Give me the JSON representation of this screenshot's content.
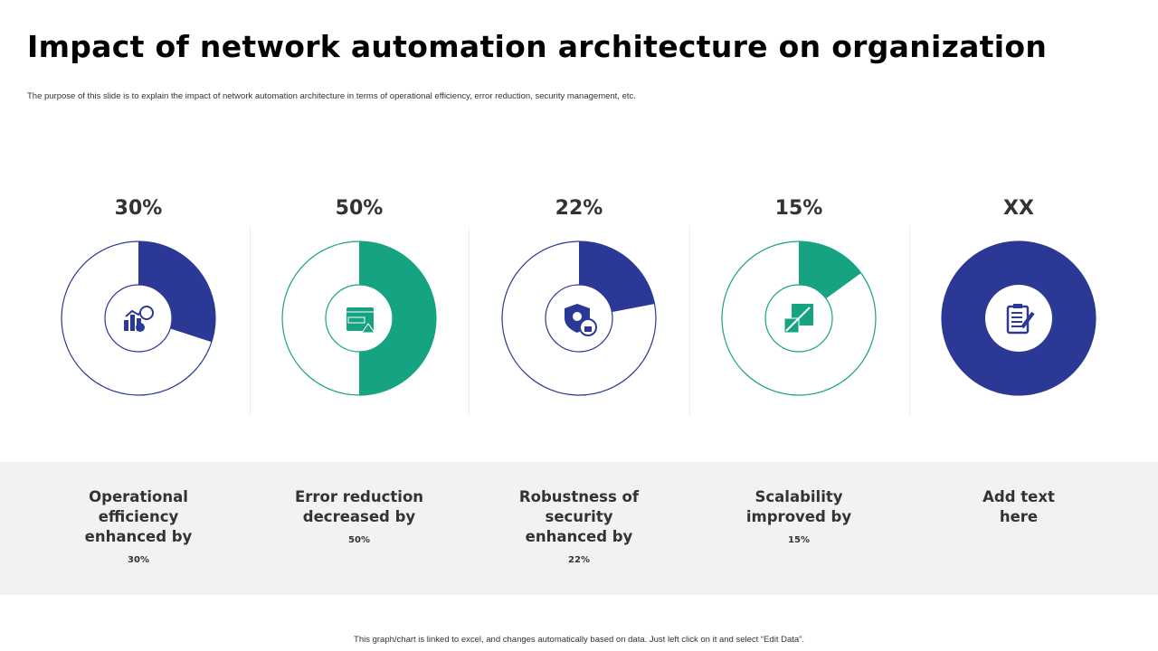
{
  "title": "Impact of network automation architecture on organization",
  "subtitle": "The purpose of this slide is to explain the impact of network automation architecture in terms of operational efficiency, error reduction, security management, etc.",
  "footer": "This graph/chart is linked to excel, and changes automatically based on data. Just left click on it and select “Edit Data”.",
  "colors": {
    "navy": "#2B3896",
    "green": "#16A382",
    "band": "#F2F2F2"
  },
  "chart_data": {
    "type": "pie",
    "variant": "donut",
    "items": [
      {
        "top_label": "30%",
        "value": 30,
        "color": "#2B3896",
        "icon": "analytics-gear-clock-icon",
        "label": "Operational efficiency enhanced by",
        "sub": "30%"
      },
      {
        "top_label": "50%",
        "value": 50,
        "color": "#16A382",
        "icon": "browser-warning-icon",
        "label": "Error reduction decreased by",
        "sub": "50%"
      },
      {
        "top_label": "22%",
        "value": 22,
        "color": "#2B3896",
        "icon": "shield-gear-lock-icon",
        "label": "Robustness of security enhanced by",
        "sub": "22%"
      },
      {
        "top_label": "15%",
        "value": 15,
        "color": "#16A382",
        "icon": "growth-chart-icon",
        "label": "Scalability improved by",
        "sub": "15%"
      },
      {
        "top_label": "XX",
        "value": 100,
        "color": "#2B3896",
        "icon": "clipboard-edit-icon",
        "label": "Add text here",
        "sub": ""
      }
    ]
  }
}
